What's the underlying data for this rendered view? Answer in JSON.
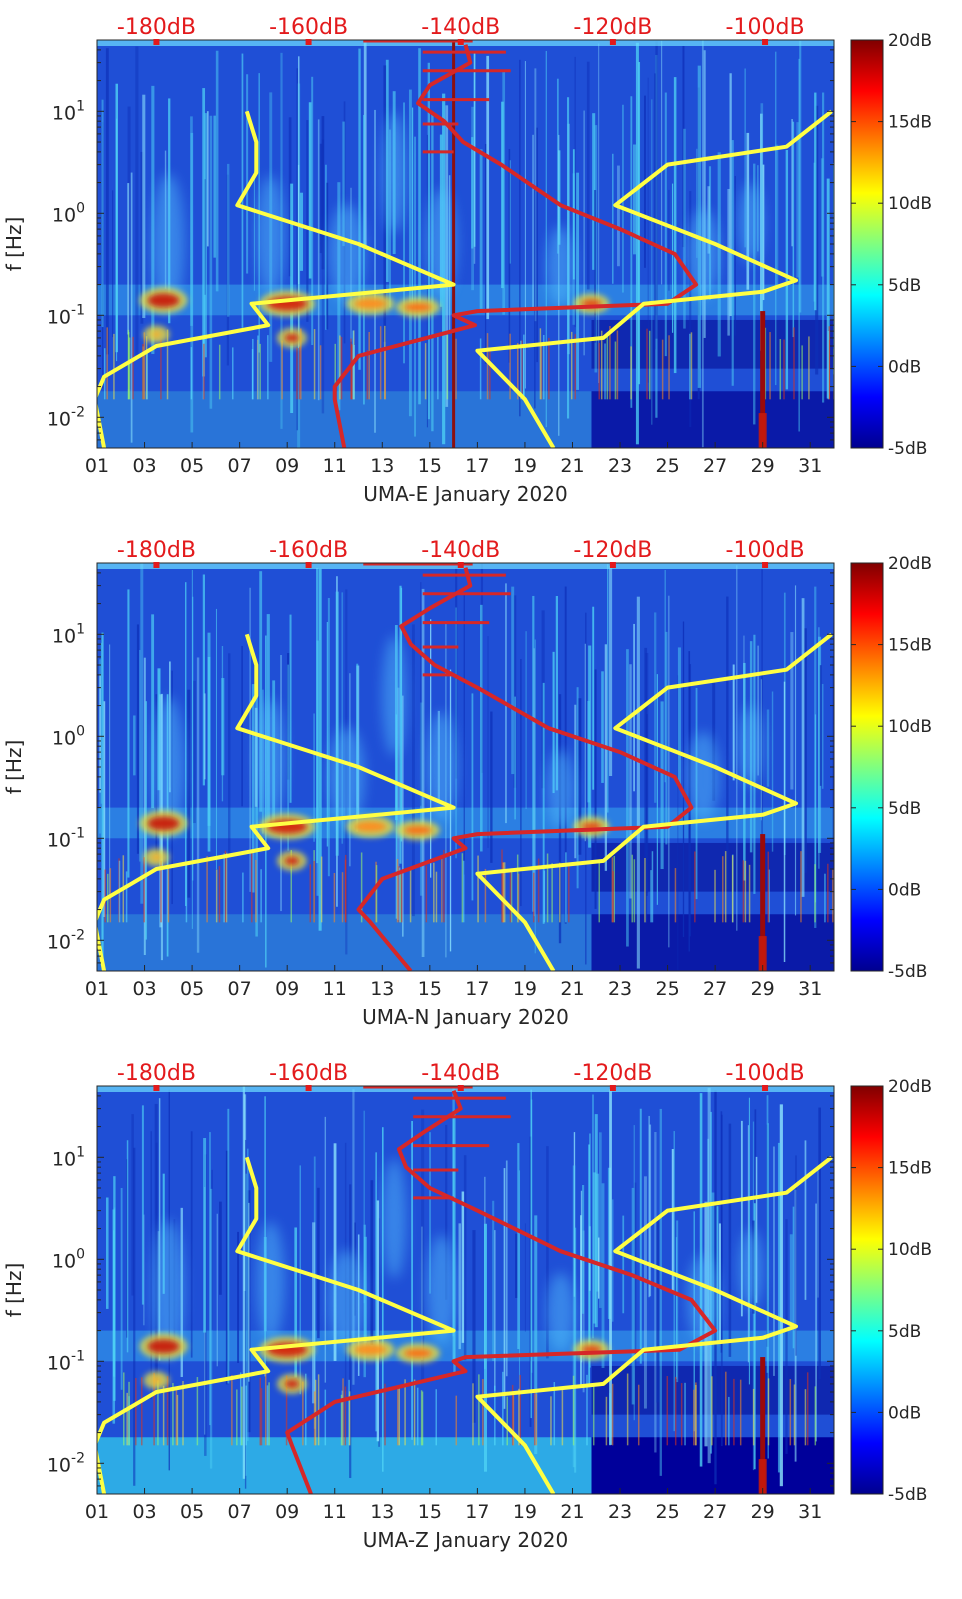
{
  "colors": {
    "red_curve": "#d62728",
    "yellow_curve": "#ffff44",
    "top_label": "#e31a1c"
  },
  "chart_data": [
    {
      "type": "heatmap",
      "title": "",
      "xlabel": "UMA-E January 2020",
      "ylabel": "f [Hz]",
      "xlim": [
        1,
        32
      ],
      "ylim": [
        0.005,
        50
      ],
      "yscale": "log",
      "x_tick_labels": [
        "01",
        "03",
        "05",
        "07",
        "09",
        "11",
        "13",
        "15",
        "17",
        "19",
        "21",
        "23",
        "25",
        "27",
        "29",
        "31"
      ],
      "y_tick_labels": [
        {
          "base": "10",
          "exp": "-2",
          "value": 0.01
        },
        {
          "base": "10",
          "exp": "-1",
          "value": 0.1
        },
        {
          "base": "10",
          "exp": "0",
          "value": 1
        },
        {
          "base": "10",
          "exp": "1",
          "value": 10
        }
      ],
      "colorbar": {
        "range": [
          -5,
          20
        ],
        "labels": [
          "20dB",
          "15dB",
          "10dB",
          "5dB",
          "0dB",
          "-5dB"
        ]
      },
      "top_axis_labels": [
        "-180dB",
        "-160dB",
        "-140dB",
        "-120dB",
        "-100dB"
      ],
      "series": [
        {
          "name": "red model curve (dB, top axis)",
          "x_day": [
            16.5,
            16.7,
            15.0,
            14.5,
            15.6,
            16.4,
            18.0,
            20.5,
            23.0,
            25.3,
            26.2,
            25.0,
            17.0,
            16.0,
            16.9,
            12.0,
            11.0,
            11.0,
            11.4
          ],
          "f_hz": [
            45,
            30,
            18,
            12,
            8,
            5,
            3,
            1.2,
            0.7,
            0.4,
            0.2,
            0.13,
            0.11,
            0.1,
            0.08,
            0.04,
            0.02,
            0.015,
            0.005
          ]
        },
        {
          "name": "yellow model curve (dB, top axis)",
          "x_day": [
            7.3,
            7.7,
            7.7,
            6.9,
            12.0,
            16.0,
            7.5,
            8.2,
            3.5,
            1.3,
            0.9,
            1.3
          ],
          "f_hz": [
            10,
            5,
            2.5,
            1.2,
            0.5,
            0.2,
            0.13,
            0.08,
            0.05,
            0.025,
            0.015,
            0.005
          ]
        },
        {
          "name": "yellow model curve right (dB, top axis)",
          "x_day": [
            31.9,
            30.0,
            25.0,
            22.8,
            27.0,
            30.4,
            29.0,
            24.0,
            22.3,
            17.0,
            19.0,
            20.2
          ],
          "f_hz": [
            10,
            4.5,
            3,
            1.2,
            0.5,
            0.22,
            0.17,
            0.13,
            0.06,
            0.045,
            0.015,
            0.005
          ]
        }
      ]
    },
    {
      "type": "heatmap",
      "title": "",
      "xlabel": "UMA-N January 2020",
      "ylabel": "f [Hz]",
      "xlim": [
        1,
        32
      ],
      "ylim": [
        0.005,
        50
      ],
      "yscale": "log",
      "x_tick_labels": [
        "01",
        "03",
        "05",
        "07",
        "09",
        "11",
        "13",
        "15",
        "17",
        "19",
        "21",
        "23",
        "25",
        "27",
        "29",
        "31"
      ],
      "y_tick_labels": [
        {
          "base": "10",
          "exp": "-2",
          "value": 0.01
        },
        {
          "base": "10",
          "exp": "-1",
          "value": 0.1
        },
        {
          "base": "10",
          "exp": "0",
          "value": 1
        },
        {
          "base": "10",
          "exp": "1",
          "value": 10
        }
      ],
      "colorbar": {
        "range": [
          -5,
          20
        ],
        "labels": [
          "20dB",
          "15dB",
          "10dB",
          "5dB",
          "0dB",
          "-5dB"
        ]
      },
      "top_axis_labels": [
        "-180dB",
        "-160dB",
        "-140dB",
        "-120dB",
        "-100dB"
      ],
      "series": [
        {
          "name": "red model curve (dB, top axis)",
          "x_day": [
            16.5,
            16.7,
            15.0,
            13.8,
            14.2,
            15.2,
            17.0,
            20.0,
            23.0,
            25.3,
            26.0,
            25.0,
            17.0,
            16.0,
            16.5,
            13.0,
            12.0,
            12.5,
            14.2
          ],
          "f_hz": [
            45,
            30,
            18,
            12,
            8,
            5,
            3,
            1.2,
            0.7,
            0.4,
            0.2,
            0.13,
            0.11,
            0.1,
            0.08,
            0.04,
            0.02,
            0.015,
            0.005
          ]
        },
        {
          "name": "yellow model curve (dB, top axis)",
          "x_day": [
            7.3,
            7.7,
            7.7,
            6.9,
            12.0,
            16.0,
            7.5,
            8.2,
            3.5,
            1.3,
            0.9,
            1.3
          ],
          "f_hz": [
            10,
            5,
            2.5,
            1.2,
            0.5,
            0.2,
            0.13,
            0.08,
            0.05,
            0.025,
            0.015,
            0.005
          ]
        },
        {
          "name": "yellow model curve right (dB, top axis)",
          "x_day": [
            31.9,
            30.0,
            25.0,
            22.8,
            27.0,
            30.4,
            29.0,
            24.0,
            22.3,
            17.0,
            19.0,
            20.2
          ],
          "f_hz": [
            10,
            4.5,
            3,
            1.2,
            0.5,
            0.22,
            0.17,
            0.13,
            0.06,
            0.045,
            0.015,
            0.005
          ]
        }
      ]
    },
    {
      "type": "heatmap",
      "title": "",
      "xlabel": "UMA-Z January 2020",
      "ylabel": "f [Hz]",
      "xlim": [
        1,
        32
      ],
      "ylim": [
        0.005,
        50
      ],
      "yscale": "log",
      "x_tick_labels": [
        "01",
        "03",
        "05",
        "07",
        "09",
        "11",
        "13",
        "15",
        "17",
        "19",
        "21",
        "23",
        "25",
        "27",
        "29",
        "31"
      ],
      "y_tick_labels": [
        {
          "base": "10",
          "exp": "-2",
          "value": 0.01
        },
        {
          "base": "10",
          "exp": "-1",
          "value": 0.1
        },
        {
          "base": "10",
          "exp": "0",
          "value": 1
        },
        {
          "base": "10",
          "exp": "1",
          "value": 10
        }
      ],
      "colorbar": {
        "range": [
          -5,
          20
        ],
        "labels": [
          "20dB",
          "15dB",
          "10dB",
          "5dB",
          "0dB",
          "-5dB"
        ]
      },
      "top_axis_labels": [
        "-180dB",
        "-160dB",
        "-140dB",
        "-120dB",
        "-100dB"
      ],
      "series": [
        {
          "name": "red model curve (dB, top axis)",
          "x_day": [
            16.0,
            16.3,
            14.8,
            13.7,
            14.0,
            15.0,
            17.0,
            20.5,
            23.5,
            26.0,
            27.0,
            25.5,
            16.5,
            16.0,
            16.5,
            11.0,
            9.0,
            9.2,
            10.0
          ],
          "f_hz": [
            45,
            30,
            18,
            12,
            8,
            5,
            3,
            1.2,
            0.7,
            0.4,
            0.2,
            0.13,
            0.11,
            0.1,
            0.08,
            0.04,
            0.02,
            0.015,
            0.005
          ]
        },
        {
          "name": "yellow model curve (dB, top axis)",
          "x_day": [
            7.3,
            7.7,
            7.7,
            6.9,
            12.0,
            16.0,
            7.5,
            8.2,
            3.5,
            1.3,
            0.9,
            1.3
          ],
          "f_hz": [
            10,
            5,
            2.5,
            1.2,
            0.5,
            0.2,
            0.13,
            0.08,
            0.05,
            0.025,
            0.015,
            0.005
          ]
        },
        {
          "name": "yellow model curve right (dB, top axis)",
          "x_day": [
            31.9,
            30.0,
            25.0,
            22.8,
            27.0,
            30.4,
            29.0,
            24.0,
            22.3,
            17.0,
            19.0,
            20.2
          ],
          "f_hz": [
            10,
            4.5,
            3,
            1.2,
            0.5,
            0.22,
            0.17,
            0.13,
            0.06,
            0.045,
            0.015,
            0.005
          ]
        }
      ]
    }
  ]
}
